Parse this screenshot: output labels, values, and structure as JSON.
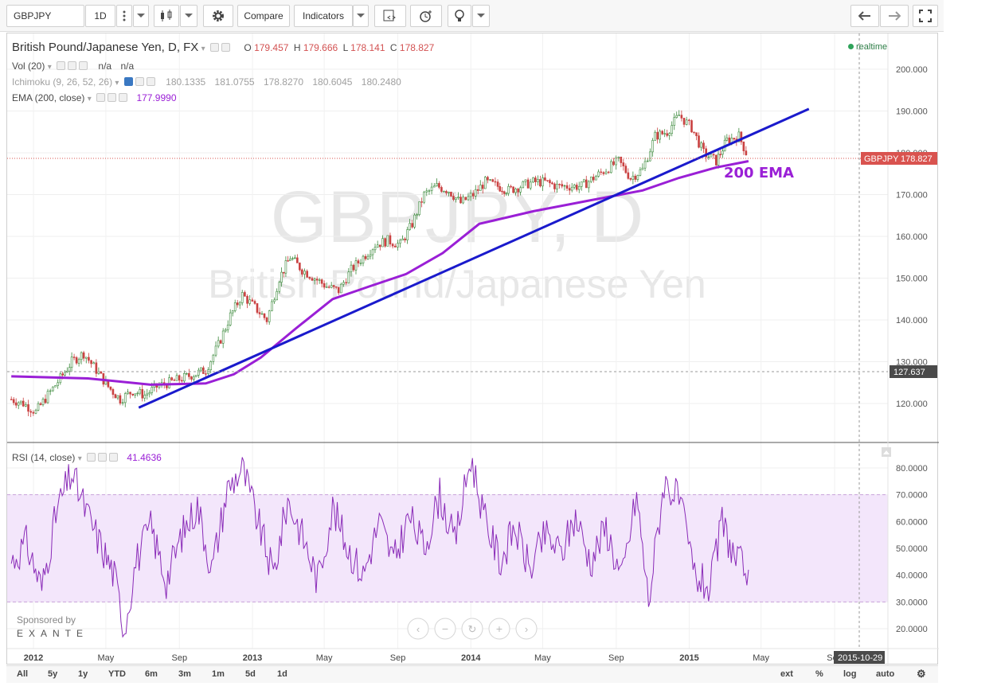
{
  "toolbar": {
    "symbol": "GBPJPY",
    "interval": "1D",
    "compare_label": "Compare",
    "indicators_label": "Indicators"
  },
  "legend": {
    "title": "British Pound/Japanese Yen, D, FX",
    "o_label": "O",
    "o": "179.457",
    "h_label": "H",
    "h": "179.666",
    "l_label": "L",
    "l": "178.141",
    "c_label": "C",
    "c": "178.827",
    "vol_label": "Vol (20)",
    "vol_v1": "n/a",
    "vol_v2": "n/a",
    "ichi_label": "Ichimoku (9, 26, 52, 26)",
    "ichi_values": [
      "180.1335",
      "181.0755",
      "178.8270",
      "180.6045",
      "180.2480"
    ],
    "ema_label": "EMA (200, close)",
    "ema_value": "177.9990",
    "rsi_label": "RSI (14, close)",
    "rsi_value": "41.4636",
    "realtime": "realtime"
  },
  "watermark": {
    "line1": "GBPJPY, D",
    "line2": "British Pound/Japanese Yen"
  },
  "annotation": "200 EMA",
  "price_axis": {
    "ticks": [
      "200.000",
      "190.000",
      "180.000",
      "170.000",
      "160.000",
      "150.000",
      "140.000",
      "130.000",
      "120.000"
    ],
    "current_symbol": "GBPJPY",
    "current_price": "178.827",
    "crosshair_price": "127.637"
  },
  "rsi_axis": {
    "ticks": [
      "80.0000",
      "70.0000",
      "60.0000",
      "50.0000",
      "40.0000",
      "30.0000",
      "20.0000"
    ]
  },
  "time_axis": {
    "labels": [
      "2012",
      "May",
      "Sep",
      "2013",
      "May",
      "Sep",
      "2014",
      "May",
      "Sep",
      "2015",
      "May",
      "Sep"
    ],
    "crosshair_date": "2015-10-29"
  },
  "sponsor": {
    "line1": "Sponsored by",
    "line2": "EXANTE"
  },
  "ranges": [
    "All",
    "5y",
    "1y",
    "YTD",
    "6m",
    "3m",
    "1m",
    "5d",
    "1d"
  ],
  "bottom_right": [
    "ext",
    "%",
    "log",
    "auto"
  ],
  "colors": {
    "ema": "#9a1fd6",
    "trendline": "#1a1acc",
    "rsi": "#8a2bb8",
    "rsi_band": "#f3e6fb",
    "annotation": "#9a1fd6",
    "price_tag": "#d9534f",
    "bull": "#3c8a3c",
    "bear": "#c94040"
  },
  "chart_data": [
    {
      "type": "candlestick",
      "ylim": [
        110,
        205
      ],
      "x": [
        "2011-11-25",
        "2011-12-15",
        "2012-01-05",
        "2012-01-25",
        "2012-02-15",
        "2012-03-05",
        "2012-03-25",
        "2012-04-15",
        "2012-05-05",
        "2012-05-25",
        "2012-06-15",
        "2012-07-05",
        "2012-07-25",
        "2012-08-15",
        "2012-09-05",
        "2012-09-25",
        "2012-10-15",
        "2012-11-05",
        "2012-11-25",
        "2012-12-15",
        "2013-01-05",
        "2013-01-25",
        "2013-02-15",
        "2013-03-05",
        "2013-03-25",
        "2013-04-15",
        "2013-05-05",
        "2013-05-25",
        "2013-06-15",
        "2013-07-05",
        "2013-07-25",
        "2013-08-15",
        "2013-09-05",
        "2013-09-25",
        "2013-10-15",
        "2013-11-05",
        "2013-11-25",
        "2013-12-15",
        "2014-01-05",
        "2014-01-25",
        "2014-02-15",
        "2014-03-05",
        "2014-03-25",
        "2014-04-15",
        "2014-05-05",
        "2014-05-25",
        "2014-06-15",
        "2014-07-05",
        "2014-07-25",
        "2014-08-15",
        "2014-09-05",
        "2014-09-25",
        "2014-10-15",
        "2014-11-05",
        "2014-11-25",
        "2014-12-15",
        "2015-01-05",
        "2015-01-25",
        "2015-02-15",
        "2015-03-05",
        "2015-03-25",
        "2015-04-10"
      ],
      "close": [
        121,
        120,
        118,
        122,
        126,
        130,
        132,
        128,
        124,
        121,
        123,
        122,
        124,
        125,
        126,
        127,
        128,
        134,
        141,
        146,
        143,
        140,
        150,
        155,
        152,
        150,
        148,
        147,
        152,
        155,
        158,
        159,
        158,
        163,
        170,
        172,
        171,
        168,
        170,
        173,
        172,
        171,
        172,
        173,
        173,
        172,
        172,
        172,
        174,
        176,
        178,
        174,
        176,
        184,
        185,
        189,
        186,
        180,
        178,
        183,
        184,
        178.8
      ]
    },
    {
      "type": "line",
      "series": [
        {
          "name": "EMA (200, close)",
          "x": [
            "2011-11-25",
            "2012-04-01",
            "2012-07-15",
            "2012-10-15",
            "2012-12-01",
            "2013-01-15",
            "2013-03-15",
            "2013-05-15",
            "2013-07-15",
            "2013-09-15",
            "2013-11-15",
            "2014-01-15",
            "2014-04-15",
            "2014-07-15",
            "2014-10-15",
            "2014-12-15",
            "2015-02-15",
            "2015-04-10"
          ],
          "values": [
            126.5,
            126,
            124.5,
            124.8,
            127,
            131,
            138,
            145,
            148,
            151,
            156,
            163,
            166,
            168.5,
            171,
            174,
            176.5,
            178
          ]
        },
        {
          "name": "Trendline",
          "x": [
            "2012-06-25",
            "2015-07-20"
          ],
          "values": [
            119,
            190.5
          ]
        }
      ]
    },
    {
      "type": "line",
      "series": [
        {
          "name": "RSI (14, close)",
          "x": [
            "2011-11-25",
            "2011-12-20",
            "2012-01-15",
            "2012-02-10",
            "2012-03-05",
            "2012-04-01",
            "2012-04-25",
            "2012-05-15",
            "2012-06-01",
            "2012-06-20",
            "2012-07-15",
            "2012-08-10",
            "2012-09-05",
            "2012-10-01",
            "2012-10-25",
            "2012-11-20",
            "2012-12-15",
            "2013-01-10",
            "2013-02-05",
            "2013-03-01",
            "2013-03-25",
            "2013-04-20",
            "2013-05-15",
            "2013-06-10",
            "2013-07-05",
            "2013-08-01",
            "2013-08-25",
            "2013-09-20",
            "2013-10-15",
            "2013-11-10",
            "2013-12-05",
            "2014-01-01",
            "2014-01-25",
            "2014-02-20",
            "2014-03-15",
            "2014-04-10",
            "2014-05-05",
            "2014-06-01",
            "2014-06-25",
            "2014-07-20",
            "2014-08-15",
            "2014-09-10",
            "2014-10-05",
            "2014-10-25",
            "2014-11-20",
            "2014-12-15",
            "2015-01-10",
            "2015-02-05",
            "2015-02-25",
            "2015-03-20",
            "2015-04-10"
          ],
          "values": [
            45,
            52,
            35,
            65,
            78,
            62,
            50,
            40,
            20,
            45,
            58,
            38,
            55,
            66,
            42,
            72,
            80,
            60,
            40,
            68,
            55,
            38,
            65,
            50,
            40,
            60,
            45,
            62,
            50,
            70,
            52,
            84,
            60,
            45,
            58,
            42,
            55,
            48,
            62,
            45,
            58,
            38,
            70,
            30,
            75,
            68,
            40,
            35,
            60,
            45,
            42
          ]
        }
      ],
      "ylim": [
        15,
        85
      ],
      "overbought": 70,
      "oversold": 30
    }
  ]
}
